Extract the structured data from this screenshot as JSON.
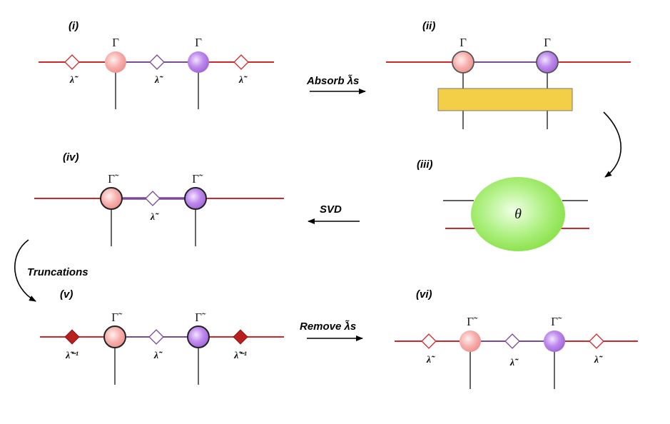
{
  "colors": {
    "bond_red": "#d0282a",
    "bond_purple": "#7a4a98",
    "pink_node": "#f6a9a6",
    "purple_node": "#b57fe4",
    "gate_fill": "#f3cf48",
    "theta_fill": "#8ee84a",
    "inverse_diamond": "#b81f1f"
  },
  "panels": {
    "i": {
      "label": "(i)",
      "gamma": "Γ",
      "lambda": "λ̃"
    },
    "ii": {
      "label": "(ii)",
      "gamma": "Γ"
    },
    "iii": {
      "label": "(iii)",
      "theta": "θ"
    },
    "iv": {
      "label": "(iv)",
      "gamma": "Γ̃",
      "lambda": "λ̃"
    },
    "v": {
      "label": "(v)",
      "gamma": "Γ̃",
      "lambda": "λ̃",
      "lambda_inv": "λ̃⁻¹"
    },
    "vi": {
      "label": "(vi)",
      "gamma": "Γ̃",
      "lambda": "λ̃"
    }
  },
  "steps": {
    "absorb": "Absorb λ̃s",
    "svd": "SVD",
    "truncations": "Truncations",
    "remove": "Remove λ̃s"
  }
}
